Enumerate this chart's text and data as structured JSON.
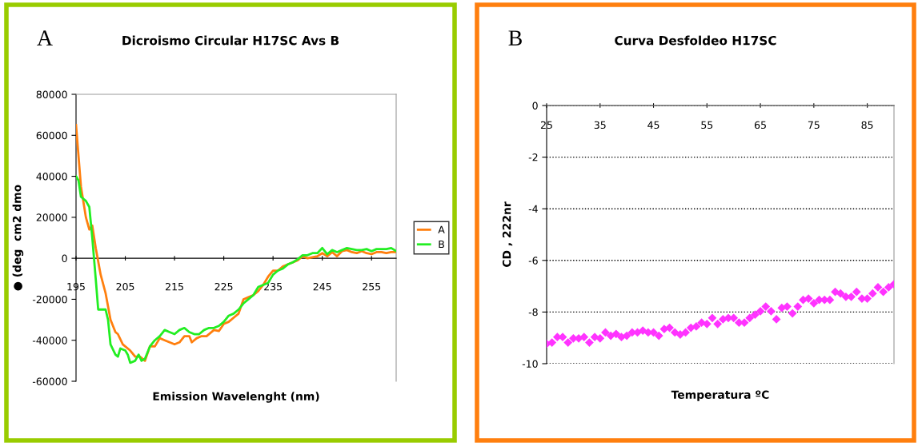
{
  "chart_data": [
    {
      "type": "line",
      "title": "Dicroismo Circular H17SC Avs B",
      "xlabel": "Emission Wavelenght (nm)",
      "ylabel": "● (deg  cm2 dmo",
      "annotations": [
        "A"
      ],
      "xlim": [
        195,
        260
      ],
      "xticks": [
        195,
        205,
        215,
        225,
        235,
        245,
        255
      ],
      "ylim": [
        -60000,
        80000
      ],
      "yticks": [
        -60000,
        -40000,
        -20000,
        0,
        20000,
        40000,
        60000,
        80000
      ],
      "grid": false,
      "legend": "right",
      "marker": "none",
      "line_style": "solid",
      "series": [
        {
          "name": "A",
          "color": "#ff7f0e",
          "x": [
            195,
            196,
            197,
            197.7,
            198.3,
            199,
            200,
            201,
            202,
            203,
            203.5,
            204.5,
            206,
            207,
            208,
            209,
            210,
            211,
            212,
            213,
            214,
            215,
            216,
            217,
            218,
            218.5,
            219.5,
            220.5,
            221.5,
            223,
            224,
            225,
            226,
            227,
            228,
            229,
            230,
            231,
            232,
            233,
            234,
            235,
            236,
            237,
            238,
            239,
            240,
            241,
            242,
            243,
            244,
            245,
            246,
            247,
            248,
            249,
            250,
            251,
            252,
            253,
            254,
            255,
            256,
            257,
            258,
            259,
            260
          ],
          "values": [
            65000,
            35000,
            20000,
            14000,
            16000,
            5000,
            -8000,
            -17000,
            -30000,
            -36000,
            -37000,
            -42000,
            -45000,
            -48000,
            -48000,
            -50000,
            -43000,
            -43000,
            -39000,
            -40000,
            -41000,
            -42000,
            -41000,
            -38000,
            -38000,
            -41000,
            -39000,
            -38000,
            -38000,
            -35000,
            -35500,
            -32000,
            -31000,
            -29000,
            -27000,
            -20000,
            -19000,
            -18000,
            -16000,
            -13000,
            -9000,
            -6000,
            -6000,
            -4000,
            -3000,
            -2000,
            -1000,
            1000,
            0,
            500,
            1000,
            2500,
            1000,
            3000,
            1000,
            3500,
            4000,
            3000,
            2500,
            3500,
            2500,
            2000,
            3000,
            3000,
            2500,
            3000,
            3000
          ]
        },
        {
          "name": "B",
          "color": "#22ee22",
          "x": [
            195,
            195.5,
            196,
            197,
            197.7,
            198.3,
            199,
            199.5,
            200,
            201,
            201.5,
            202,
            203,
            203.5,
            204,
            205,
            205.5,
            206,
            207,
            207.7,
            208.3,
            209,
            210,
            211,
            212,
            213,
            214,
            215,
            216,
            217,
            218,
            219,
            220,
            221,
            222,
            223,
            224,
            225,
            226,
            227,
            228,
            229,
            230,
            231,
            232,
            233,
            234,
            235,
            236,
            237,
            238,
            239,
            240,
            241,
            242,
            243,
            244,
            245,
            246,
            247,
            248,
            249,
            250,
            251,
            252,
            253,
            254,
            255,
            256,
            257,
            258,
            259,
            260
          ],
          "values": [
            40000,
            38000,
            30000,
            28000,
            25000,
            10000,
            -10000,
            -25000,
            -25000,
            -25000,
            -30000,
            -42000,
            -47000,
            -48000,
            -44000,
            -45000,
            -47000,
            -51000,
            -50000,
            -47000,
            -50000,
            -49000,
            -43000,
            -40000,
            -38000,
            -35000,
            -36000,
            -37000,
            -35000,
            -34000,
            -36000,
            -37000,
            -37000,
            -35000,
            -34000,
            -34000,
            -33000,
            -31000,
            -28000,
            -27000,
            -25000,
            -22000,
            -20000,
            -18000,
            -14000,
            -13000,
            -12000,
            -8000,
            -6000,
            -5000,
            -3000,
            -2000,
            -500,
            1500,
            1500,
            2500,
            2500,
            5000,
            2000,
            4000,
            3000,
            4000,
            5000,
            4500,
            4000,
            4000,
            4500,
            3500,
            4500,
            4500,
            4500,
            5000,
            3500
          ]
        }
      ]
    },
    {
      "type": "scatter",
      "title": "Curva Desfoldeo H17SC",
      "xlabel": "Temperatura ºC",
      "ylabel": "CD , 222nr",
      "annotations": [
        "B"
      ],
      "xlim": [
        25,
        90
      ],
      "xticks": [
        25,
        35,
        45,
        55,
        65,
        75,
        85
      ],
      "ylim": [
        -10,
        0
      ],
      "yticks": [
        -10,
        -8,
        -6,
        -4,
        -2,
        0
      ],
      "grid": "y",
      "legend": false,
      "marker": "diamond",
      "series": [
        {
          "color": "#ff33ff",
          "x": [
            25,
            26,
            27,
            28,
            29,
            30,
            31,
            32,
            33,
            34,
            35,
            36,
            37,
            38,
            39,
            40,
            41,
            42,
            43,
            44,
            45,
            46,
            47,
            48,
            49,
            50,
            51,
            52,
            53,
            54,
            55,
            56,
            57,
            58,
            59,
            60,
            61,
            62,
            63,
            64,
            65,
            66,
            67,
            68,
            69,
            70,
            71,
            72,
            73,
            74,
            75,
            76,
            77,
            78,
            79,
            80,
            81,
            82,
            83,
            84,
            85,
            86,
            87,
            88,
            89,
            90
          ],
          "values": [
            -9.23,
            -9.18,
            -8.97,
            -8.97,
            -9.18,
            -9.02,
            -9.02,
            -8.97,
            -9.18,
            -8.97,
            -9.02,
            -8.79,
            -8.92,
            -8.85,
            -8.97,
            -8.92,
            -8.79,
            -8.79,
            -8.72,
            -8.79,
            -8.79,
            -8.92,
            -8.66,
            -8.61,
            -8.79,
            -8.87,
            -8.79,
            -8.61,
            -8.56,
            -8.41,
            -8.46,
            -8.23,
            -8.46,
            -8.28,
            -8.23,
            -8.23,
            -8.41,
            -8.41,
            -8.23,
            -8.1,
            -7.97,
            -7.79,
            -7.97,
            -8.28,
            -7.84,
            -7.79,
            -8.05,
            -7.79,
            -7.53,
            -7.48,
            -7.66,
            -7.53,
            -7.53,
            -7.53,
            -7.22,
            -7.28,
            -7.41,
            -7.41,
            -7.22,
            -7.48,
            -7.48,
            -7.28,
            -7.04,
            -7.22,
            -7.04,
            -6.92
          ]
        }
      ]
    }
  ]
}
